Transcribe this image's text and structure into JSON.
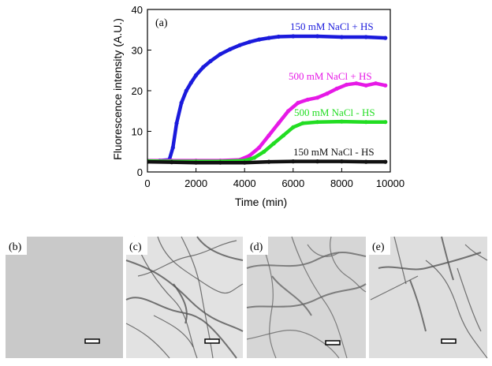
{
  "chart_data": {
    "type": "line",
    "panel_label": "(a)",
    "xlabel": "Time (min)",
    "ylabel": "Fluorescence intensity (A.U.)",
    "xlim": [
      0,
      10000
    ],
    "ylim": [
      0,
      40
    ],
    "xticks": [
      0,
      2000,
      4000,
      6000,
      8000,
      10000
    ],
    "yticks": [
      0,
      10,
      20,
      30,
      40
    ],
    "grid": false,
    "series": [
      {
        "name": "150 mM NaCl + HS",
        "color": "#1a1adc",
        "x": [
          0,
          500,
          900,
          1050,
          1200,
          1400,
          1600,
          1800,
          2000,
          2300,
          2600,
          3000,
          3400,
          3800,
          4200,
          4600,
          5000,
          5400,
          6000,
          7000,
          8000,
          9000,
          9800
        ],
        "y": [
          2.6,
          2.8,
          3.0,
          6.0,
          12.0,
          17.0,
          20.0,
          22.0,
          23.8,
          25.8,
          27.3,
          29.0,
          30.2,
          31.2,
          32.0,
          32.6,
          33.0,
          33.3,
          33.4,
          33.4,
          33.2,
          33.2,
          33.0
        ]
      },
      {
        "name": "500 mM NaCl + HS",
        "color": "#e619e6",
        "x": [
          0,
          1000,
          2000,
          3000,
          3800,
          4200,
          4600,
          5000,
          5400,
          5800,
          6200,
          6600,
          7000,
          7400,
          7800,
          8200,
          8600,
          9000,
          9400,
          9800
        ],
        "y": [
          2.8,
          2.8,
          2.8,
          2.8,
          3.0,
          4.0,
          6.0,
          9.0,
          12.0,
          15.0,
          17.0,
          17.8,
          18.3,
          19.3,
          20.5,
          21.5,
          21.8,
          21.3,
          21.8,
          21.3
        ]
      },
      {
        "name": "500 mM NaCl - HS",
        "color": "#22dd22",
        "x": [
          0,
          1000,
          2000,
          3000,
          4000,
          4400,
          4800,
          5200,
          5600,
          6000,
          6400,
          7000,
          8000,
          9000,
          9800
        ],
        "y": [
          2.7,
          2.6,
          2.6,
          2.6,
          2.8,
          3.5,
          5.0,
          7.0,
          9.0,
          11.0,
          12.0,
          12.3,
          12.4,
          12.3,
          12.3
        ]
      },
      {
        "name": "150 mM NaCl - HS",
        "color": "#111111",
        "x": [
          0,
          1000,
          2000,
          3000,
          4000,
          5000,
          6000,
          7000,
          8000,
          9000,
          9800
        ],
        "y": [
          2.5,
          2.4,
          2.3,
          2.3,
          2.3,
          2.5,
          2.6,
          2.6,
          2.6,
          2.5,
          2.5
        ]
      }
    ]
  },
  "micrographs": [
    {
      "id": "b",
      "label": "(b)",
      "fibrils": "none",
      "tone": "#c9c9c9"
    },
    {
      "id": "c",
      "label": "(c)",
      "fibrils": "dense",
      "tone": "#e2e2e2"
    },
    {
      "id": "d",
      "label": "(d)",
      "fibrils": "network",
      "tone": "#d6d6d6"
    },
    {
      "id": "e",
      "label": "(e)",
      "fibrils": "sparse",
      "tone": "#dedede"
    }
  ]
}
